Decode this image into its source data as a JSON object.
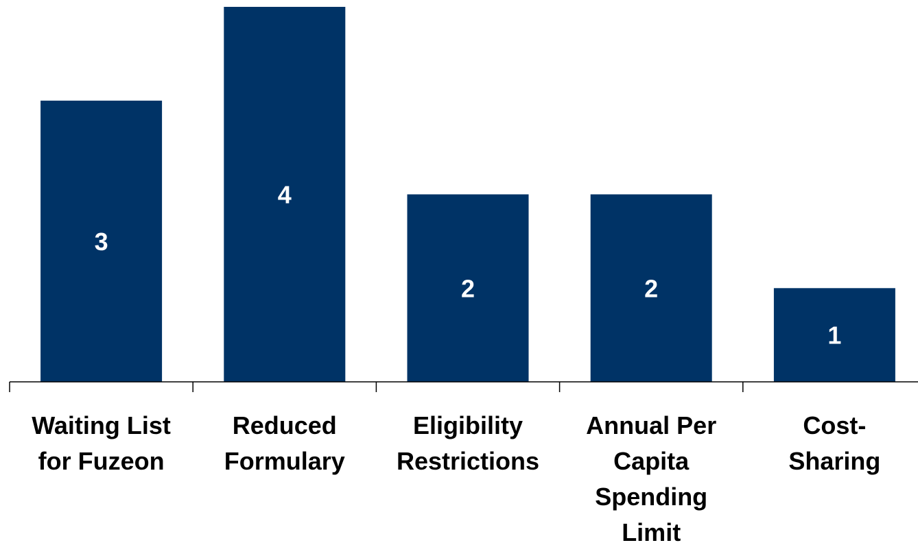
{
  "chart_data": {
    "type": "bar",
    "title": "",
    "xlabel": "",
    "ylabel": "",
    "categories": [
      [
        "Waiting List",
        "for Fuzeon"
      ],
      [
        "Reduced",
        "Formulary"
      ],
      [
        "Eligibility",
        "Restrictions"
      ],
      [
        "Annual Per",
        "Capita",
        "Spending",
        "Limit"
      ],
      [
        "Cost-",
        "Sharing"
      ]
    ],
    "values": [
      3,
      4,
      2,
      2,
      1
    ],
    "value_labels": [
      "3",
      "4",
      "2",
      "2",
      "1"
    ],
    "ylim": [
      0,
      4
    ],
    "grid": false,
    "legend": "none",
    "bar_color": "#003366",
    "value_label_color": "#ffffff",
    "axis_color": "#000000"
  }
}
